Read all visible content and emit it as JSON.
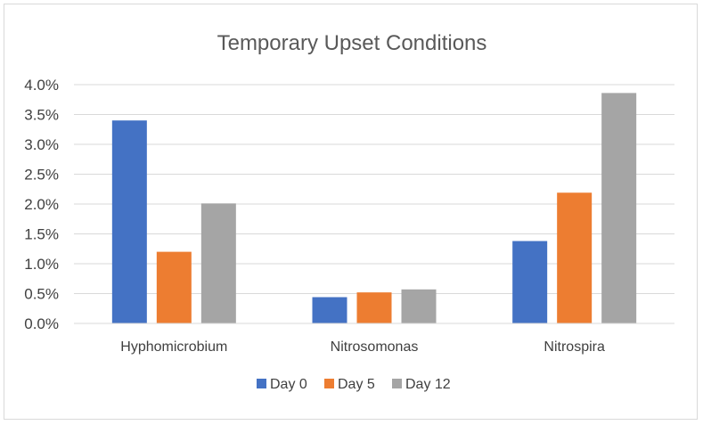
{
  "chart_data": {
    "type": "bar",
    "title": "Temporary Upset Conditions",
    "xlabel": "",
    "ylabel": "",
    "categories": [
      "Hyphomicrobium",
      "Nitrosomonas",
      "Nitrospira"
    ],
    "series": [
      {
        "name": "Day 0",
        "values": [
          0.034,
          0.0044,
          0.0138
        ],
        "color": "#4472C4"
      },
      {
        "name": "Day 5",
        "values": [
          0.012,
          0.0052,
          0.0219
        ],
        "color": "#ED7D31"
      },
      {
        "name": "Day 12",
        "values": [
          0.0201,
          0.0057,
          0.0386
        ],
        "color": "#A5A5A5"
      }
    ],
    "ylim": [
      0,
      0.04
    ],
    "yticks": [
      0,
      0.005,
      0.01,
      0.015,
      0.02,
      0.025,
      0.03,
      0.035,
      0.04
    ],
    "ytick_labels": [
      "0.0%",
      "0.5%",
      "1.0%",
      "1.5%",
      "2.0%",
      "2.5%",
      "3.0%",
      "3.5%",
      "4.0%"
    ],
    "grid": true,
    "legend_position": "bottom"
  },
  "colors": {
    "title_text": "#595959",
    "axis_text": "#404040",
    "gridline": "#d9d9d9",
    "axis_line": "#d9d9d9"
  }
}
